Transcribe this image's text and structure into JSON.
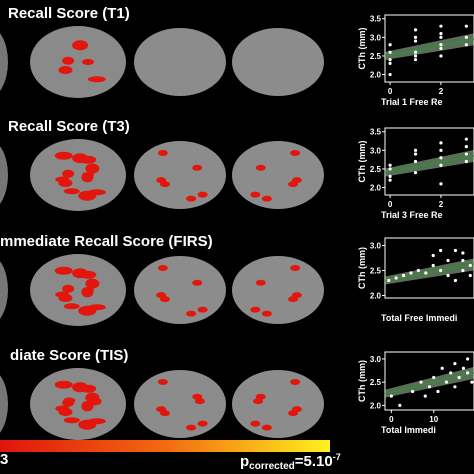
{
  "panels": [
    {
      "title": "Recall Score (T1)"
    },
    {
      "title": "Recall Score (T3)"
    },
    {
      "title": "mmediate Recall Score (FIRS)"
    },
    {
      "title": "diate Score (TIS)"
    }
  ],
  "colorbar": {
    "min_label": "3",
    "p": "p",
    "sub": "corrected",
    "eq": "=5.10",
    "sup": "-7"
  },
  "chart_data": [
    {
      "type": "scatter",
      "xlabel": "Trial 1 Free Re",
      "ylabel": "CTh (mm)",
      "color": "#ffffff",
      "x": [
        0,
        0,
        0,
        0,
        0,
        1,
        1,
        1,
        1,
        1,
        1,
        2,
        2,
        2,
        2,
        2,
        2,
        3,
        3,
        3
      ],
      "y": [
        2.0,
        2.3,
        2.4,
        2.6,
        2.8,
        2.4,
        2.6,
        2.9,
        3.0,
        3.2,
        2.5,
        2.5,
        2.7,
        2.8,
        3.0,
        3.1,
        3.3,
        2.8,
        3.0,
        3.3
      ],
      "fit": {
        "x": [
          -0.2,
          3.3
        ],
        "y": [
          2.5,
          2.95
        ],
        "color": "#3a8a3a"
      },
      "xlim": [
        -0.2,
        3.3
      ],
      "ylim": [
        1.8,
        3.6
      ],
      "xticks": [
        0,
        2
      ],
      "yticks": [
        {
          "value": 2,
          "label": "2.0"
        },
        2.5,
        {
          "value": 3,
          "label": "3.0"
        },
        3.5
      ]
    },
    {
      "type": "scatter",
      "xlabel": "Trial 3 Free Re",
      "ylabel": "CTh (mm)",
      "color": "#ffffff",
      "x": [
        0,
        0,
        0,
        0,
        1,
        1,
        1,
        1,
        2,
        2,
        2,
        2,
        2,
        3,
        3,
        3,
        3
      ],
      "y": [
        2.3,
        2.5,
        2.6,
        2.2,
        2.4,
        2.7,
        2.9,
        3.0,
        2.1,
        2.6,
        2.8,
        3.0,
        3.2,
        2.7,
        2.9,
        3.1,
        3.3
      ],
      "fit": {
        "x": [
          -0.2,
          3.3
        ],
        "y": [
          2.4,
          2.85
        ],
        "color": "#3a8a3a"
      },
      "xlim": [
        -0.2,
        3.3
      ],
      "ylim": [
        1.8,
        3.6
      ],
      "xticks": [
        0,
        2
      ],
      "yticks": [
        {
          "value": 2,
          "label": "2.0"
        },
        2.5,
        {
          "value": 3,
          "label": "3.0"
        },
        3.5
      ]
    },
    {
      "type": "scatter",
      "xlabel": "Total Free Immedi",
      "ylabel": "CTh (mm)",
      "color": "#ffffff",
      "x": [
        2,
        3,
        4,
        5,
        6,
        7,
        8,
        8,
        9,
        9,
        10,
        10,
        11,
        11,
        12,
        12,
        12,
        13,
        13
      ],
      "y": [
        2.3,
        2.35,
        2.4,
        2.45,
        2.5,
        2.45,
        2.6,
        2.8,
        2.5,
        2.9,
        2.4,
        2.7,
        2.9,
        2.3,
        2.5,
        2.7,
        2.85,
        2.6,
        2.4
      ],
      "fit": {
        "x": [
          1.5,
          13.5
        ],
        "y": [
          2.3,
          2.62
        ],
        "color": "#3a8a3a"
      },
      "xlim": [
        1.5,
        13.5
      ],
      "ylim": [
        1.95,
        3.15
      ],
      "yticks": [
        {
          "value": 2,
          "label": "2.0"
        },
        2.5,
        {
          "value": 3,
          "label": "3.0"
        }
      ]
    },
    {
      "type": "scatter",
      "xlabel": "Total Immedi",
      "ylabel": "CTh (mm)",
      "color": "#ffffff",
      "x": [
        0,
        2,
        5,
        7,
        8,
        9,
        10,
        11,
        12,
        13,
        14,
        15,
        15,
        16,
        17,
        18,
        18,
        19
      ],
      "y": [
        2.2,
        2.0,
        2.3,
        2.5,
        2.2,
        2.4,
        2.6,
        2.3,
        2.8,
        2.5,
        2.7,
        2.9,
        2.4,
        2.6,
        2.8,
        2.7,
        3.0,
        2.5
      ],
      "fit": {
        "x": [
          -1.5,
          19.5
        ],
        "y": [
          2.25,
          2.7
        ],
        "color": "#3a8a3a"
      },
      "xlim": [
        -1.5,
        19.5
      ],
      "ylim": [
        1.9,
        3.15
      ],
      "xticks": [
        0,
        10
      ],
      "yticks": [
        {
          "value": 2,
          "label": "2.0"
        },
        2.5,
        {
          "value": 3,
          "label": "3.0"
        }
      ]
    }
  ]
}
